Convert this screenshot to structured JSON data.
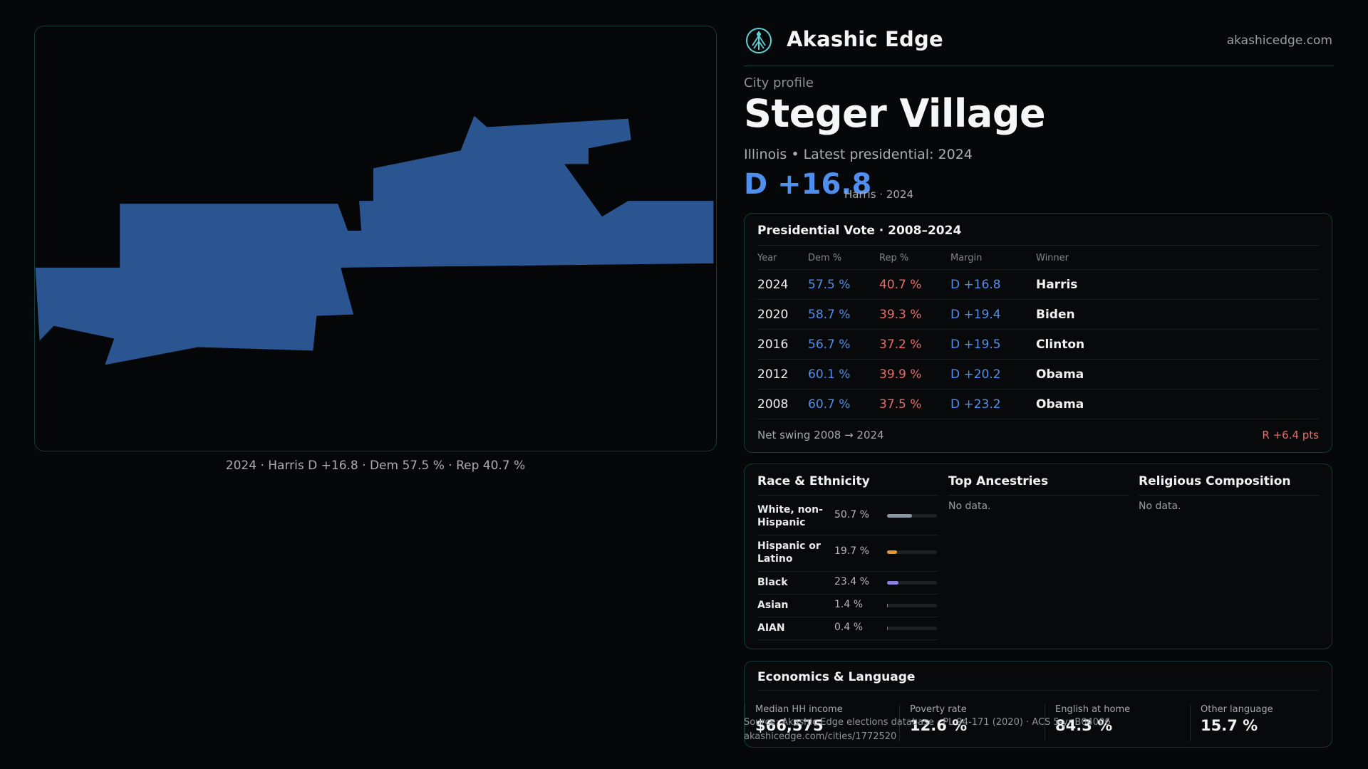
{
  "map": {
    "fill_color": "#2a5591",
    "caption": "2024 · Harris D +16.8 · Dem 57.5 % · Rep 40.7 %"
  },
  "header": {
    "brand": "Akashic Edge",
    "site": "akashicedge.com",
    "logo_icon": "tree-of-life-icon"
  },
  "profile": {
    "kicker": "City profile",
    "title": "Steger Village",
    "subline": "Illinois • Latest presidential: 2024",
    "margin": "D +16.8",
    "margin_note": "Harris · 2024"
  },
  "vote": {
    "title": "Presidential Vote · 2008–2024",
    "columns": [
      "Year",
      "Dem %",
      "Rep %",
      "Margin",
      "Winner"
    ],
    "rows": [
      {
        "year": "2024",
        "dem": "57.5 %",
        "rep": "40.7 %",
        "margin": "D +16.8",
        "winner": "Harris"
      },
      {
        "year": "2020",
        "dem": "58.7 %",
        "rep": "39.3 %",
        "margin": "D +19.4",
        "winner": "Biden"
      },
      {
        "year": "2016",
        "dem": "56.7 %",
        "rep": "37.2 %",
        "margin": "D +19.5",
        "winner": "Clinton"
      },
      {
        "year": "2012",
        "dem": "60.1 %",
        "rep": "39.9 %",
        "margin": "D +20.2",
        "winner": "Obama"
      },
      {
        "year": "2008",
        "dem": "60.7 %",
        "rep": "37.5 %",
        "margin": "D +23.2",
        "winner": "Obama"
      }
    ],
    "swing_label": "Net swing 2008 → 2024",
    "swing_value": "R +6.4 pts"
  },
  "race": {
    "title": "Race & Ethnicity",
    "items": [
      {
        "label": "White, non-Hispanic",
        "pct": "50.7 %",
        "value": 50.7,
        "color": "#8f96a3"
      },
      {
        "label": "Hispanic or Latino",
        "pct": "19.7 %",
        "value": 19.7,
        "color": "#e39a2a"
      },
      {
        "label": "Black",
        "pct": "23.4 %",
        "value": 23.4,
        "color": "#8e7fdc"
      },
      {
        "label": "Asian",
        "pct": "1.4 %",
        "value": 1.4,
        "color": "#2fb39a"
      },
      {
        "label": "AIAN",
        "pct": "0.4 %",
        "value": 0.4,
        "color": "#c0544f"
      }
    ]
  },
  "ancestries": {
    "title": "Top Ancestries",
    "empty": "No data."
  },
  "religion": {
    "title": "Religious Composition",
    "empty": "No data."
  },
  "econ": {
    "title": "Economics & Language",
    "stats": [
      {
        "label": "Median HH income",
        "value": "$66,575"
      },
      {
        "label": "Poverty rate",
        "value": "12.6 %"
      },
      {
        "label": "English at home",
        "value": "84.3 %"
      },
      {
        "label": "Other language",
        "value": "15.7 %"
      }
    ]
  },
  "footer": {
    "source": "Source: Akashic Edge elections database · PL 94-171 (2020) · ACS 5-yr B04006",
    "url": "akashicedge.com/cities/1772520"
  }
}
